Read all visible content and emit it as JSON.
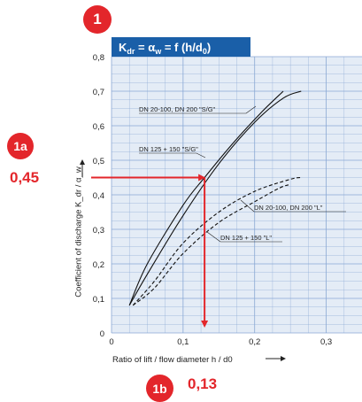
{
  "badges": {
    "main": "1",
    "y_marker": "1a",
    "x_marker": "1b"
  },
  "callouts": {
    "y_value": "0,45",
    "x_value": "0,13"
  },
  "colors": {
    "header_bg": "#1a5fa8",
    "plot_bg": "#e4ecf6",
    "grid": "#8aa8d4",
    "accent_red": "#e3262b",
    "curve": "#111111"
  },
  "chart_data": {
    "type": "line",
    "title": "K_dr = α_w = f (h/d_0)",
    "xlabel": "Ratio of lift / flow diameter h / d0",
    "ylabel": "Coefficient of discharge K_dr / α_w",
    "xlim": [
      0,
      0.35
    ],
    "ylim": [
      0,
      0.8
    ],
    "x_tick_labels": [
      "0",
      "0,1",
      "0,2",
      "0,3"
    ],
    "y_tick_labels": [
      "0",
      "0,1",
      "0,2",
      "0,3",
      "0,4",
      "0,5",
      "0,6",
      "0,7",
      "0,8"
    ],
    "grid": true,
    "series": [
      {
        "name": "DN 20-100, DN 200 \"S/G\"",
        "style": "solid",
        "points": [
          [
            0.025,
            0.08
          ],
          [
            0.05,
            0.17
          ],
          [
            0.1,
            0.34
          ],
          [
            0.15,
            0.49
          ],
          [
            0.2,
            0.61
          ],
          [
            0.24,
            0.68
          ],
          [
            0.265,
            0.7
          ]
        ]
      },
      {
        "name": "DN 125 + 150 \"S/G\"",
        "style": "solid",
        "points": [
          [
            0.025,
            0.08
          ],
          [
            0.05,
            0.2
          ],
          [
            0.1,
            0.37
          ],
          [
            0.13,
            0.45
          ],
          [
            0.17,
            0.55
          ],
          [
            0.21,
            0.64
          ],
          [
            0.24,
            0.7
          ]
        ]
      },
      {
        "name": "DN 20-100, DN 200 \"L\"",
        "style": "dashed",
        "points": [
          [
            0.03,
            0.08
          ],
          [
            0.06,
            0.15
          ],
          [
            0.1,
            0.26
          ],
          [
            0.15,
            0.35
          ],
          [
            0.2,
            0.41
          ],
          [
            0.25,
            0.445
          ],
          [
            0.265,
            0.45
          ]
        ]
      },
      {
        "name": "DN 125 + 150 \"L\"",
        "style": "dashed",
        "points": [
          [
            0.03,
            0.08
          ],
          [
            0.06,
            0.13
          ],
          [
            0.1,
            0.23
          ],
          [
            0.15,
            0.32
          ],
          [
            0.2,
            0.38
          ],
          [
            0.235,
            0.42
          ],
          [
            0.25,
            0.43
          ]
        ]
      }
    ],
    "annotation": {
      "x": 0.13,
      "y": 0.45
    }
  }
}
